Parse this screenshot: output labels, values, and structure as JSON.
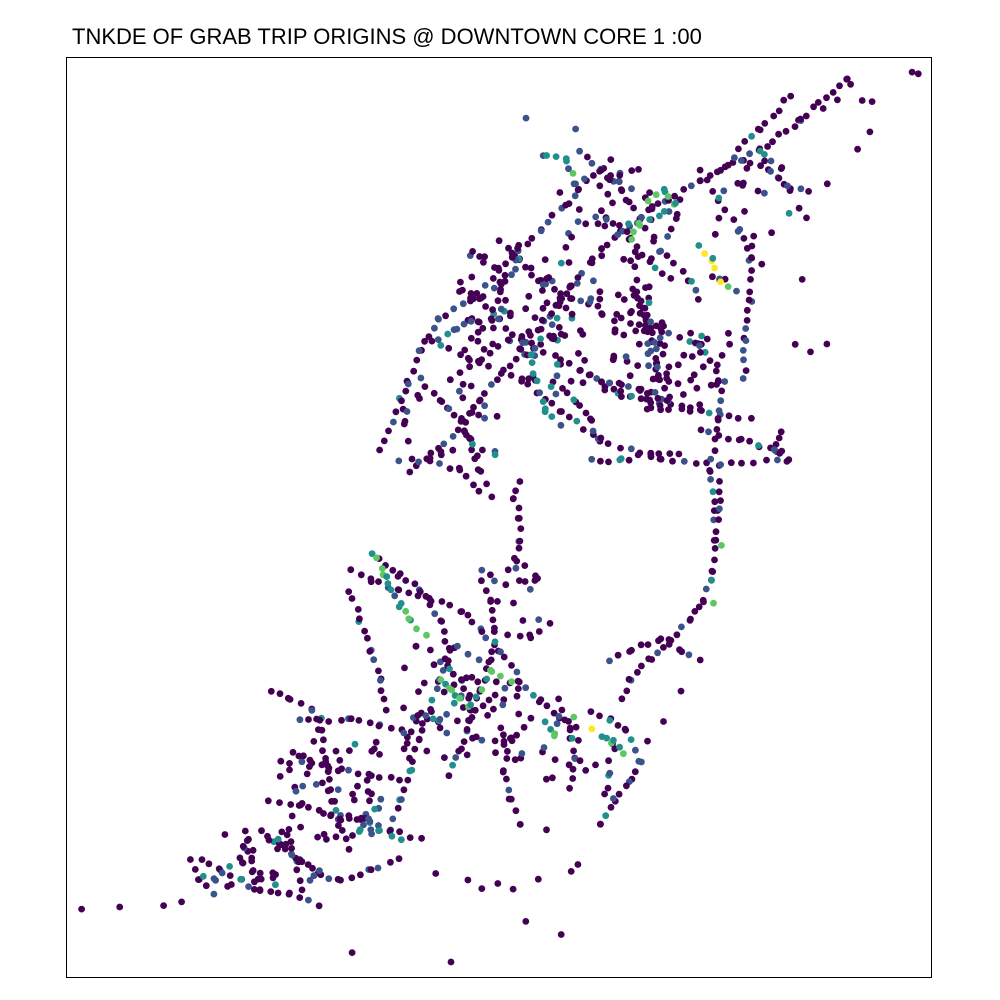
{
  "title": "TNKDE OF GRAB TRIP ORIGINS @ DOWNTOWN CORE 1 :00",
  "palette": {
    "viridis": [
      "#440154",
      "#3b528b",
      "#21908c",
      "#5dc863",
      "#fde725"
    ],
    "background": "#ffffff",
    "frame": "#000000"
  },
  "point_layer": {
    "name": "trip-origin-points",
    "colormap": "viridis",
    "density_scale": "relative TNKDE density, 0 (low, dark purple) to 1 (high, yellow)",
    "legend": "none"
  }
}
